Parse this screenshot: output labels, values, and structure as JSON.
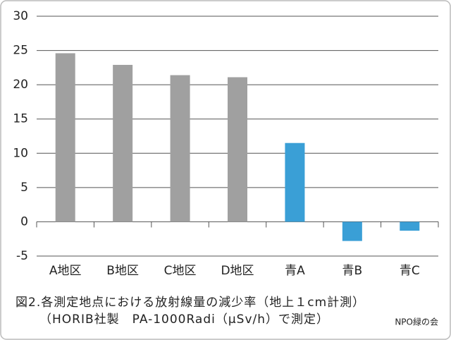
{
  "chart_data": {
    "type": "bar",
    "caption": [
      "図2.各測定地点における放射線量の減少率（地上１cm計測）",
      "（HORIB社製　PA-1000Radi（μSv/h）で測定）"
    ],
    "source": "NPO緑の会",
    "categories": [
      "A地区",
      "B地区",
      "C地区",
      "D地区",
      "青A",
      "青B",
      "青C"
    ],
    "values": [
      24.6,
      22.9,
      21.4,
      21.1,
      11.5,
      -2.8,
      -1.3
    ],
    "colors": [
      "#a0a0a0",
      "#a0a0a0",
      "#a0a0a0",
      "#a0a0a0",
      "#3a9fd6",
      "#3a9fd6",
      "#3a9fd6"
    ],
    "ylim": [
      -5,
      30
    ],
    "yticks": [
      -5,
      0,
      5,
      10,
      15,
      20,
      25,
      30
    ],
    "grid": true
  }
}
